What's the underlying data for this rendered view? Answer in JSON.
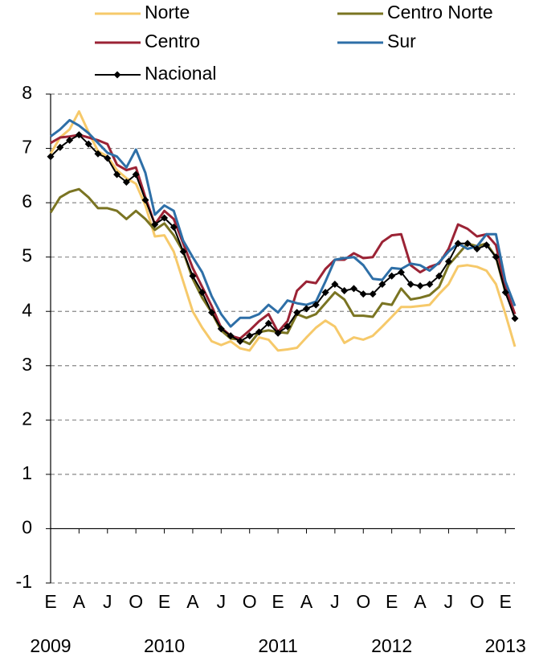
{
  "chart_data": {
    "type": "line",
    "categories": [
      "E",
      null,
      null,
      "A",
      null,
      null,
      "J",
      null,
      null,
      "O",
      null,
      null,
      "E",
      null,
      null,
      "A",
      null,
      null,
      "J",
      null,
      null,
      "O",
      null,
      null,
      "E",
      null,
      null,
      "A",
      null,
      null,
      "J",
      null,
      null,
      "O",
      null,
      null,
      "E",
      null,
      null,
      "A",
      null,
      null,
      "J",
      null,
      null,
      "O",
      null,
      null,
      "E",
      null
    ],
    "years": [
      "2009",
      "2010",
      "2011",
      "2012",
      "2013"
    ],
    "ylim": [
      -1,
      8
    ],
    "yticks": [
      -1,
      0,
      1,
      2,
      3,
      4,
      5,
      6,
      7,
      8
    ],
    "grid": true,
    "series": [
      {
        "name": "Norte",
        "color": "#f6c96a",
        "values": [
          6.9,
          7.2,
          7.35,
          7.68,
          7.3,
          6.95,
          6.85,
          6.6,
          6.45,
          6.35,
          5.95,
          5.38,
          5.4,
          5.1,
          4.55,
          4.0,
          3.7,
          3.45,
          3.38,
          3.45,
          3.32,
          3.28,
          3.52,
          3.48,
          3.28,
          3.3,
          3.33,
          3.52,
          3.7,
          3.83,
          3.72,
          3.42,
          3.52,
          3.48,
          3.55,
          3.72,
          3.9,
          4.08,
          4.08,
          4.1,
          4.12,
          4.32,
          4.5,
          4.83,
          4.85,
          4.82,
          4.75,
          4.5,
          3.95,
          3.35
        ]
      },
      {
        "name": "Centro Norte",
        "color": "#7a7422",
        "values": [
          5.82,
          6.1,
          6.2,
          6.25,
          6.1,
          5.9,
          5.9,
          5.85,
          5.7,
          5.85,
          5.7,
          5.5,
          5.62,
          5.4,
          5.1,
          4.6,
          4.25,
          3.98,
          3.65,
          3.5,
          3.48,
          3.4,
          3.62,
          3.65,
          3.62,
          3.6,
          3.95,
          3.88,
          3.95,
          4.15,
          4.35,
          4.22,
          3.92,
          3.92,
          3.9,
          4.15,
          4.12,
          4.42,
          4.22,
          4.25,
          4.3,
          4.45,
          4.85,
          5.05,
          5.25,
          5.2,
          5.25,
          5.0,
          4.35,
          3.95
        ]
      },
      {
        "name": "Centro",
        "color": "#9b2335",
        "values": [
          7.1,
          7.2,
          7.22,
          7.25,
          7.2,
          7.15,
          7.08,
          6.7,
          6.6,
          6.65,
          6.1,
          5.6,
          5.85,
          5.7,
          5.25,
          4.8,
          4.45,
          4.1,
          3.7,
          3.55,
          3.5,
          3.65,
          3.82,
          3.95,
          3.62,
          3.82,
          4.38,
          4.55,
          4.52,
          4.78,
          4.95,
          4.95,
          5.07,
          4.98,
          5.0,
          5.28,
          5.4,
          5.42,
          4.85,
          4.72,
          4.82,
          4.88,
          5.15,
          5.6,
          5.52,
          5.38,
          5.42,
          5.22,
          4.45,
          3.95
        ]
      },
      {
        "name": "Sur",
        "color": "#2e6fa7",
        "values": [
          7.22,
          7.35,
          7.52,
          7.42,
          7.28,
          7.1,
          6.92,
          6.85,
          6.65,
          6.98,
          6.55,
          5.78,
          5.95,
          5.85,
          5.3,
          5.0,
          4.72,
          4.28,
          3.95,
          3.72,
          3.88,
          3.88,
          3.95,
          4.12,
          3.98,
          4.2,
          4.15,
          4.12,
          4.18,
          4.55,
          4.95,
          4.98,
          5.0,
          4.85,
          4.6,
          4.58,
          4.8,
          4.78,
          4.88,
          4.85,
          4.75,
          4.9,
          5.1,
          5.25,
          5.15,
          5.2,
          5.42,
          5.42,
          4.55,
          4.1
        ]
      },
      {
        "name": "Nacional",
        "color": "#000000",
        "marker": "diamond",
        "values": [
          6.85,
          7.02,
          7.15,
          7.25,
          7.08,
          6.9,
          6.82,
          6.52,
          6.38,
          6.52,
          6.05,
          5.6,
          5.72,
          5.55,
          5.1,
          4.65,
          4.35,
          3.98,
          3.68,
          3.55,
          3.45,
          3.55,
          3.62,
          3.78,
          3.6,
          3.72,
          3.98,
          4.05,
          4.12,
          4.35,
          4.5,
          4.38,
          4.42,
          4.32,
          4.32,
          4.5,
          4.65,
          4.72,
          4.5,
          4.47,
          4.5,
          4.65,
          4.92,
          5.25,
          5.25,
          5.15,
          5.22,
          5.0,
          4.35,
          3.87
        ]
      }
    ]
  }
}
